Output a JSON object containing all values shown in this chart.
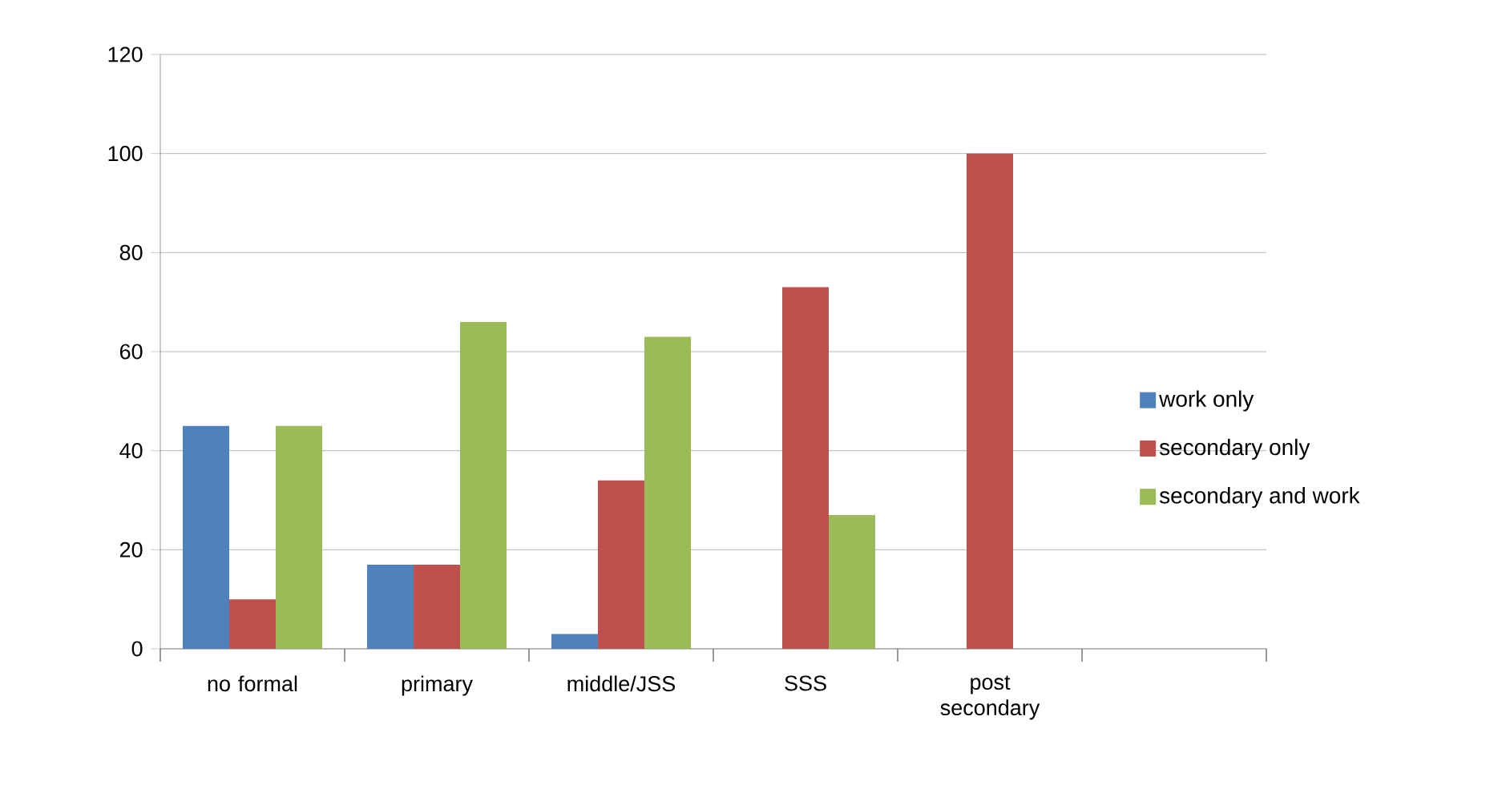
{
  "chart_data": {
    "type": "bar",
    "categories": [
      "no formal",
      "primary",
      "middle/JSS",
      "SSS",
      "post secondary",
      null
    ],
    "series": [
      {
        "name": "work only",
        "color": "#4f81bd",
        "values": [
          45,
          17,
          3,
          0,
          0,
          null
        ]
      },
      {
        "name": "secondary only",
        "color": "#c0504d",
        "values": [
          10,
          17,
          34,
          73,
          100,
          null
        ]
      },
      {
        "name": "secondary and work",
        "color": "#9bbb59",
        "values": [
          45,
          66,
          63,
          27,
          0,
          null
        ]
      }
    ],
    "ylim": [
      0,
      120
    ],
    "yticks": [
      0,
      20,
      40,
      60,
      80,
      100,
      120
    ],
    "grid": "y",
    "legend": "right"
  }
}
